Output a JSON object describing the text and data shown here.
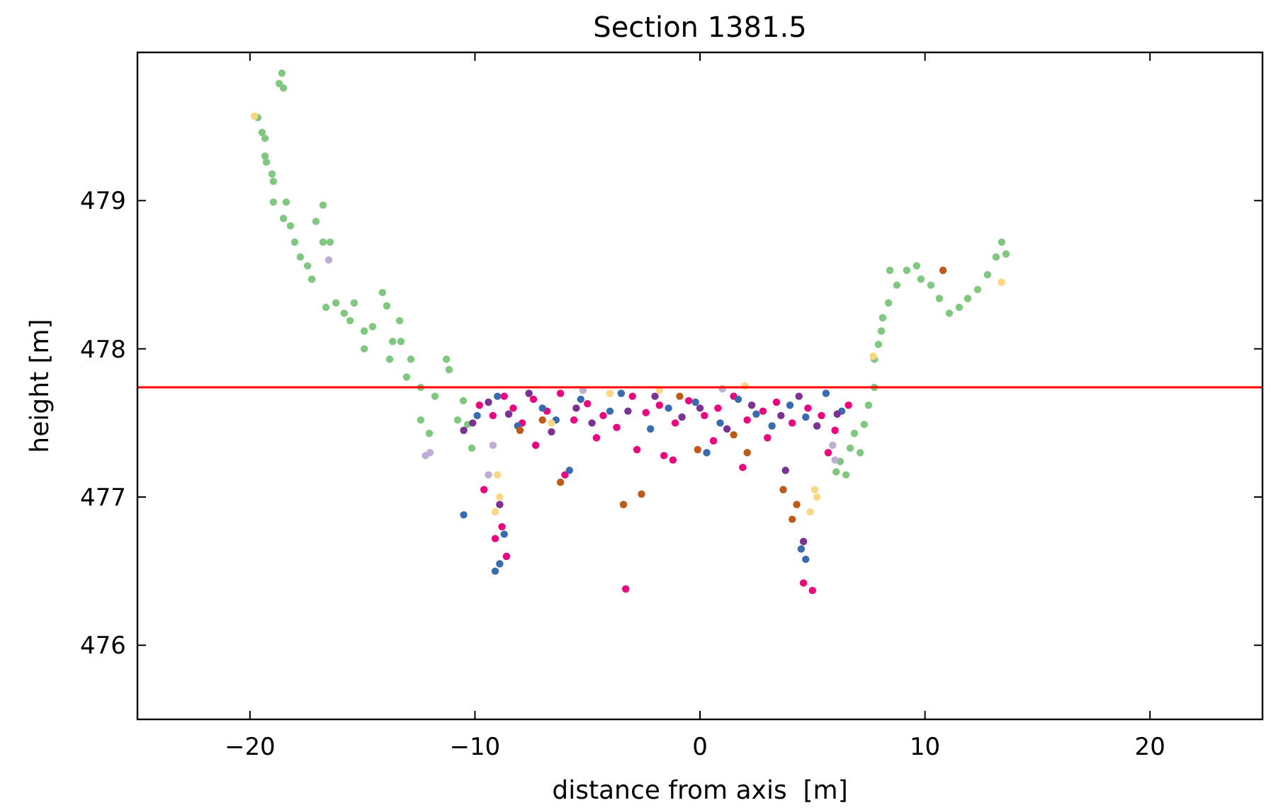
{
  "chart_data": {
    "type": "scatter",
    "title": "Section 1381.5",
    "xlabel": "distance from axis  [m]",
    "ylabel": "height [m]",
    "xlim": [
      -25,
      25
    ],
    "xticks": [
      {
        "value": -20,
        "label": "−20"
      },
      {
        "value": -10,
        "label": "−10"
      },
      0,
      10,
      20
    ],
    "ylim": [
      475.5,
      480
    ],
    "yticks": [
      476,
      477,
      478,
      479
    ],
    "grid": false,
    "marker": "circle",
    "ref_lines": [
      {
        "axis": "y",
        "value": 477.74,
        "color": "#ff0000"
      }
    ],
    "series": [
      {
        "color": "#7fc97f",
        "x": [
          -18.58,
          -18.7,
          -18.51,
          -19.65,
          -19.46,
          -19.33,
          -19.33,
          -19.27,
          -19.02,
          -18.96,
          -18.96,
          -18.39,
          -18.51,
          -18.2,
          -18.01,
          -17.76,
          -17.44,
          -17.25,
          -16.75,
          -17.07,
          -16.75,
          -16.44,
          -16.62,
          -16.18,
          -15.81,
          -15.37,
          -15.55,
          -14.92,
          -14.55,
          -14.11,
          -13.92,
          -13.35,
          -13.66,
          -13.29,
          -14.92,
          -13.79,
          -12.85,
          -13.04,
          -12.41,
          -11.27,
          -11.15,
          -11.78,
          -12.41,
          -12.03,
          -10.77,
          -10.52,
          -10.33,
          -10.14,
          7.75,
          7.49,
          7.3,
          6.86,
          6.68,
          6.23,
          6.05,
          6.49,
          7.12,
          7.75,
          7.93,
          8.06,
          8.12,
          8.38,
          8.44,
          8.75,
          9.19,
          9.63,
          9.82,
          10.26,
          10.64,
          11.08,
          11.52,
          11.9,
          12.34,
          12.78,
          13.16,
          13.41,
          13.6
        ],
        "values": [
          479.86,
          479.79,
          479.76,
          479.56,
          479.46,
          479.42,
          479.3,
          479.26,
          479.18,
          479.13,
          478.99,
          478.99,
          478.88,
          478.83,
          478.72,
          478.62,
          478.56,
          478.47,
          478.97,
          478.86,
          478.72,
          478.72,
          478.28,
          478.31,
          478.24,
          478.31,
          478.19,
          478.12,
          478.15,
          478.38,
          478.29,
          478.19,
          478.05,
          478.05,
          478.0,
          477.93,
          477.93,
          477.81,
          477.74,
          477.93,
          477.86,
          477.68,
          477.52,
          477.43,
          477.52,
          477.65,
          477.49,
          477.33,
          477.74,
          477.62,
          477.49,
          477.43,
          477.33,
          477.24,
          477.17,
          477.15,
          477.3,
          477.93,
          478.03,
          478.12,
          478.21,
          478.31,
          478.53,
          478.43,
          478.53,
          478.56,
          478.47,
          478.43,
          478.34,
          478.24,
          478.28,
          478.34,
          478.4,
          478.5,
          478.62,
          478.72,
          478.64
        ]
      },
      {
        "color": "#f0027f",
        "x": [
          -9.8,
          -9.2,
          -8.7,
          -8.3,
          -7.9,
          -7.4,
          -6.8,
          -6.2,
          -5.6,
          -5.0,
          -4.3,
          -3.7,
          -3.0,
          -2.4,
          -1.8,
          -1.1,
          -0.5,
          0.2,
          0.8,
          1.5,
          2.1,
          2.8,
          3.4,
          4.1,
          4.8,
          5.4,
          6.0,
          6.6,
          -7.3,
          -6.0,
          -4.6,
          -2.8,
          -1.2,
          0.6,
          3.0,
          5.7,
          -8.8,
          -8.6,
          -9.1,
          -3.3,
          4.6,
          5.0,
          -9.6,
          -1.6,
          1.9
        ],
        "values": [
          477.62,
          477.55,
          477.68,
          477.6,
          477.5,
          477.66,
          477.58,
          477.7,
          477.52,
          477.63,
          477.55,
          477.47,
          477.68,
          477.57,
          477.62,
          477.5,
          477.65,
          477.55,
          477.6,
          477.68,
          477.52,
          477.58,
          477.64,
          477.5,
          477.6,
          477.55,
          477.45,
          477.62,
          477.35,
          477.15,
          477.4,
          477.32,
          477.25,
          477.38,
          477.4,
          477.3,
          476.8,
          476.6,
          476.72,
          476.38,
          476.42,
          476.37,
          477.05,
          477.28,
          477.2
        ]
      },
      {
        "color": "#386cb0",
        "x": [
          -9.9,
          -9.0,
          -8.1,
          -7.0,
          -6.4,
          -5.3,
          -4.0,
          -3.5,
          -2.2,
          -1.4,
          -0.2,
          0.9,
          1.7,
          2.5,
          3.2,
          4.0,
          4.7,
          5.6,
          6.3,
          -8.9,
          -9.1,
          -8.7,
          4.5,
          4.7,
          -10.5,
          -5.8,
          0.3
        ],
        "values": [
          477.55,
          477.68,
          477.48,
          477.6,
          477.52,
          477.66,
          477.58,
          477.7,
          477.46,
          477.6,
          477.64,
          477.5,
          477.66,
          477.56,
          477.48,
          477.62,
          477.54,
          477.7,
          477.58,
          476.55,
          476.5,
          476.75,
          476.65,
          476.58,
          476.88,
          477.18,
          477.3
        ]
      },
      {
        "color": "#7b3294",
        "x": [
          -10.1,
          -9.4,
          -8.5,
          -7.6,
          -6.6,
          -5.5,
          -4.8,
          -3.2,
          -2.0,
          -0.8,
          0.0,
          1.2,
          2.3,
          3.6,
          4.4,
          5.2,
          6.1,
          -10.5,
          -8.9,
          4.6,
          3.8
        ],
        "values": [
          477.5,
          477.64,
          477.56,
          477.7,
          477.44,
          477.6,
          477.5,
          477.58,
          477.68,
          477.54,
          477.6,
          477.46,
          477.62,
          477.55,
          477.68,
          477.48,
          477.56,
          477.45,
          476.95,
          476.7,
          477.18
        ]
      },
      {
        "color": "#bf5b17",
        "x": [
          -8.0,
          -6.2,
          -3.4,
          -2.6,
          -0.1,
          1.5,
          2.1,
          3.7,
          4.1,
          4.3,
          -0.9,
          -7.0,
          10.8
        ],
        "values": [
          477.45,
          477.1,
          476.95,
          477.02,
          477.32,
          477.42,
          477.3,
          477.05,
          476.85,
          476.95,
          477.68,
          477.52,
          478.53
        ]
      },
      {
        "color": "#fdd67f",
        "x": [
          -19.8,
          -9.0,
          -8.9,
          -9.1,
          -6.6,
          -4.0,
          2.0,
          5.1,
          5.2,
          4.9,
          -1.8,
          7.7,
          13.4
        ],
        "values": [
          479.57,
          477.15,
          477.0,
          476.9,
          477.5,
          477.7,
          477.75,
          477.05,
          477.0,
          476.9,
          477.72,
          477.95,
          478.45
        ]
      },
      {
        "color": "#beaed4",
        "x": [
          -12.2,
          -12.0,
          -9.4,
          -9.2,
          5.9,
          6.0,
          -16.5,
          -5.2,
          1.0
        ],
        "values": [
          477.28,
          477.3,
          477.15,
          477.35,
          477.35,
          477.25,
          478.6,
          477.72,
          477.73
        ]
      }
    ]
  }
}
